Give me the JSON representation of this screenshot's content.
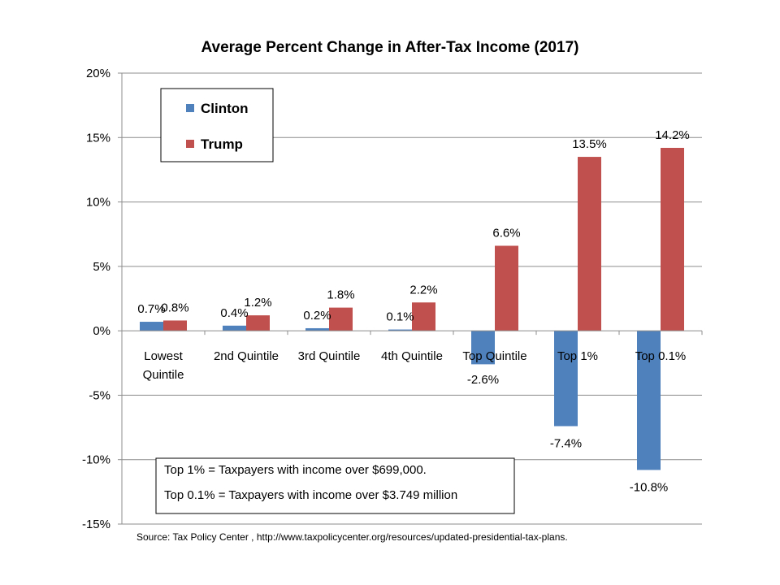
{
  "chart_data": {
    "type": "bar",
    "title": "Average Percent Change in After-Tax Income (2017)",
    "categories": [
      [
        "Lowest",
        "Quintile"
      ],
      [
        "2nd Quintile"
      ],
      [
        "3rd Quintile"
      ],
      [
        "4th Quintile"
      ],
      [
        "Top Quintile"
      ],
      [
        "Top 1%"
      ],
      [
        "Top 0.1%"
      ]
    ],
    "series": [
      {
        "name": "Clinton",
        "color": "#4f81bd",
        "values": [
          0.7,
          0.4,
          0.2,
          0.1,
          -2.6,
          -7.4,
          -10.8
        ],
        "labels": [
          "0.7%",
          "0.4%",
          "0.2%",
          "0.1%",
          "-2.6%",
          "-7.4%",
          "-10.8%"
        ]
      },
      {
        "name": "Trump",
        "color": "#c0504d",
        "values": [
          0.8,
          1.2,
          1.8,
          2.2,
          6.6,
          13.5,
          14.2
        ],
        "labels": [
          "0.8%",
          "1.2%",
          "1.8%",
          "2.2%",
          "6.6%",
          "13.5%",
          "14.2%"
        ]
      }
    ],
    "ylim": [
      -15,
      20
    ],
    "yticks": [
      20,
      15,
      10,
      5,
      0,
      -5,
      -10,
      -15
    ],
    "ytick_labels": [
      "20%",
      "15%",
      "10%",
      "5%",
      "0%",
      "-5%",
      "-10%",
      "-15%"
    ],
    "grid": true,
    "legend_position": "top-left",
    "notes": [
      "Top 1% = Taxpayers with income over $699,000.",
      "Top 0.1% = Taxpayers with income over $3.749 million"
    ],
    "source": "Source: Tax Policy Center , http://www.taxpolicycenter.org/resources/updated-presidential-tax-plans."
  }
}
